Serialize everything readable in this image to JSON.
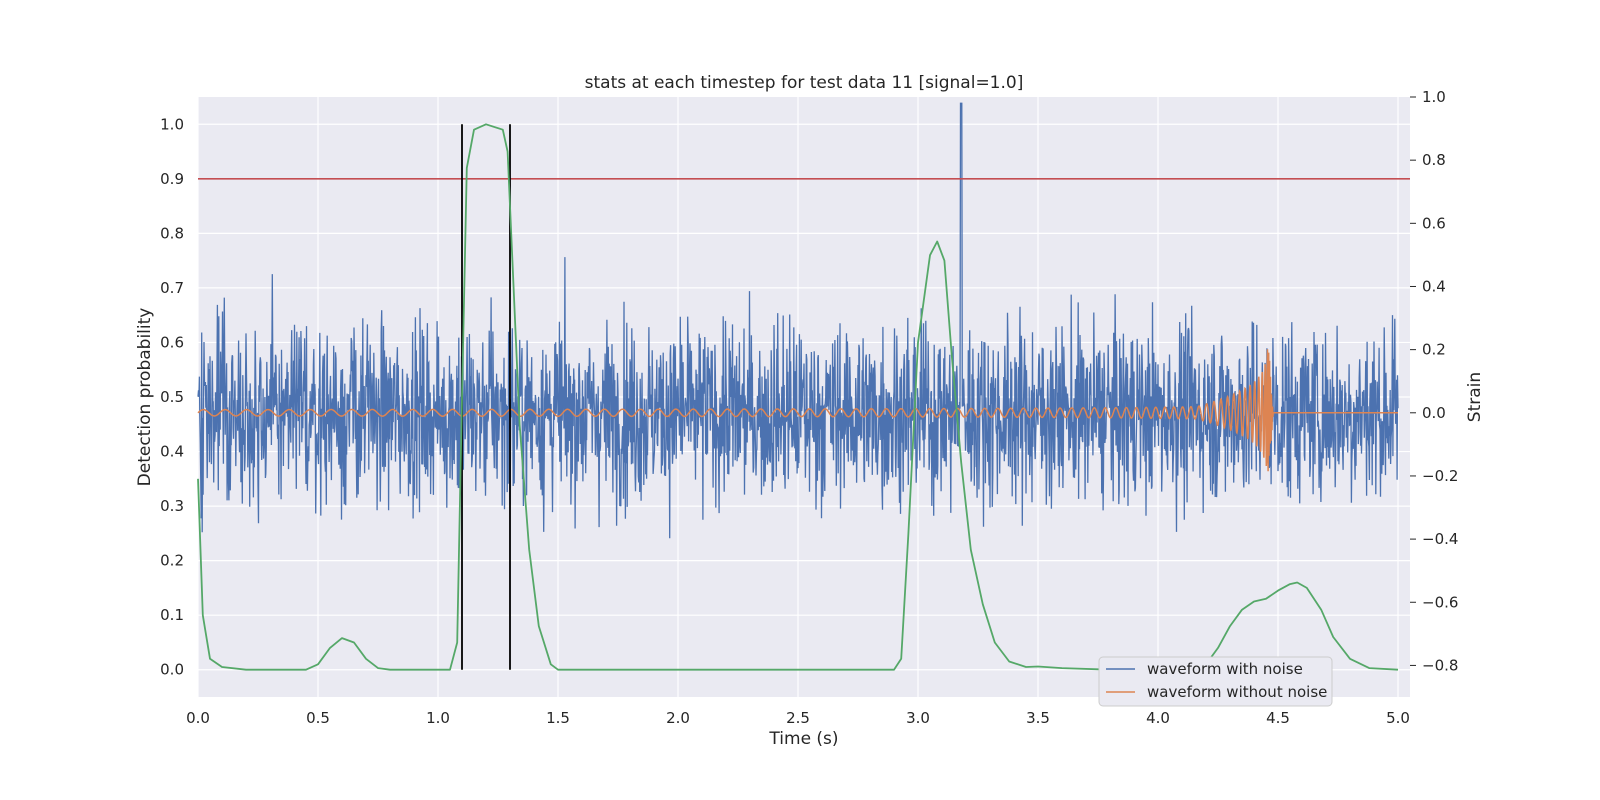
{
  "chart_data": {
    "type": "line",
    "title": "stats at each timestep for test data 11 [signal=1.0]",
    "xlabel": "Time (s)",
    "ylabel_left": "Detection probability",
    "ylabel_right": "Strain",
    "xlim": [
      0.0,
      5.05
    ],
    "ylim_left": [
      -0.05,
      1.05
    ],
    "ylim_right": [
      -0.9,
      1.0
    ],
    "x_ticks": [
      "0.0",
      "0.5",
      "1.0",
      "1.5",
      "2.0",
      "2.5",
      "3.0",
      "3.5",
      "4.0",
      "4.5",
      "5.0"
    ],
    "y_ticks_left": [
      "0.0",
      "0.1",
      "0.2",
      "0.3",
      "0.4",
      "0.5",
      "0.6",
      "0.7",
      "0.8",
      "0.9",
      "1.0"
    ],
    "y_ticks_right": [
      "−0.8",
      "−0.6",
      "−0.4",
      "−0.2",
      "0.0",
      "0.2",
      "0.4",
      "0.6",
      "0.8",
      "1.0"
    ],
    "grid": true,
    "legend_position": "lower-right",
    "threshold": {
      "y": 0.9,
      "color": "#c44e52"
    },
    "event_markers": {
      "x": [
        1.1,
        1.3
      ],
      "y_range": [
        0.0,
        1.0
      ],
      "color": "#000000"
    },
    "detection_probability": {
      "color": "#55a868",
      "points": [
        [
          0.0,
          0.35
        ],
        [
          0.02,
          0.1
        ],
        [
          0.05,
          0.02
        ],
        [
          0.1,
          0.005
        ],
        [
          0.2,
          0.0
        ],
        [
          0.45,
          0.0
        ],
        [
          0.5,
          0.01
        ],
        [
          0.55,
          0.04
        ],
        [
          0.6,
          0.058
        ],
        [
          0.65,
          0.05
        ],
        [
          0.7,
          0.02
        ],
        [
          0.75,
          0.003
        ],
        [
          0.8,
          0.0
        ],
        [
          1.05,
          0.0
        ],
        [
          1.08,
          0.05
        ],
        [
          1.1,
          0.5
        ],
        [
          1.12,
          0.92
        ],
        [
          1.15,
          0.99
        ],
        [
          1.2,
          1.0
        ],
        [
          1.27,
          0.99
        ],
        [
          1.29,
          0.95
        ],
        [
          1.31,
          0.75
        ],
        [
          1.34,
          0.45
        ],
        [
          1.38,
          0.22
        ],
        [
          1.42,
          0.08
        ],
        [
          1.47,
          0.01
        ],
        [
          1.5,
          0.0
        ],
        [
          2.9,
          0.0
        ],
        [
          2.93,
          0.02
        ],
        [
          2.96,
          0.25
        ],
        [
          3.0,
          0.6
        ],
        [
          3.05,
          0.76
        ],
        [
          3.08,
          0.785
        ],
        [
          3.11,
          0.75
        ],
        [
          3.14,
          0.58
        ],
        [
          3.18,
          0.38
        ],
        [
          3.22,
          0.22
        ],
        [
          3.27,
          0.12
        ],
        [
          3.32,
          0.05
        ],
        [
          3.38,
          0.015
        ],
        [
          3.45,
          0.005
        ],
        [
          3.5,
          0.006
        ],
        [
          3.6,
          0.003
        ],
        [
          3.8,
          0.0
        ],
        [
          4.15,
          0.0
        ],
        [
          4.2,
          0.01
        ],
        [
          4.25,
          0.04
        ],
        [
          4.3,
          0.08
        ],
        [
          4.35,
          0.11
        ],
        [
          4.4,
          0.125
        ],
        [
          4.45,
          0.13
        ],
        [
          4.5,
          0.145
        ],
        [
          4.55,
          0.157
        ],
        [
          4.58,
          0.16
        ],
        [
          4.62,
          0.15
        ],
        [
          4.68,
          0.11
        ],
        [
          4.73,
          0.06
        ],
        [
          4.8,
          0.02
        ],
        [
          4.88,
          0.003
        ],
        [
          5.0,
          0.0
        ]
      ]
    },
    "series": [
      {
        "name": "waveform with noise",
        "color": "#4c72b0",
        "typical_amplitude": 0.3,
        "peak_value": 0.98,
        "peak_time": 3.18
      },
      {
        "name": "waveform without noise",
        "color": "#dd8452",
        "chirp_start": 0.0,
        "chirp_merger_time": 4.46,
        "chirp_start_amplitude": 0.01,
        "chirp_peak_amplitude": 0.22
      }
    ]
  }
}
